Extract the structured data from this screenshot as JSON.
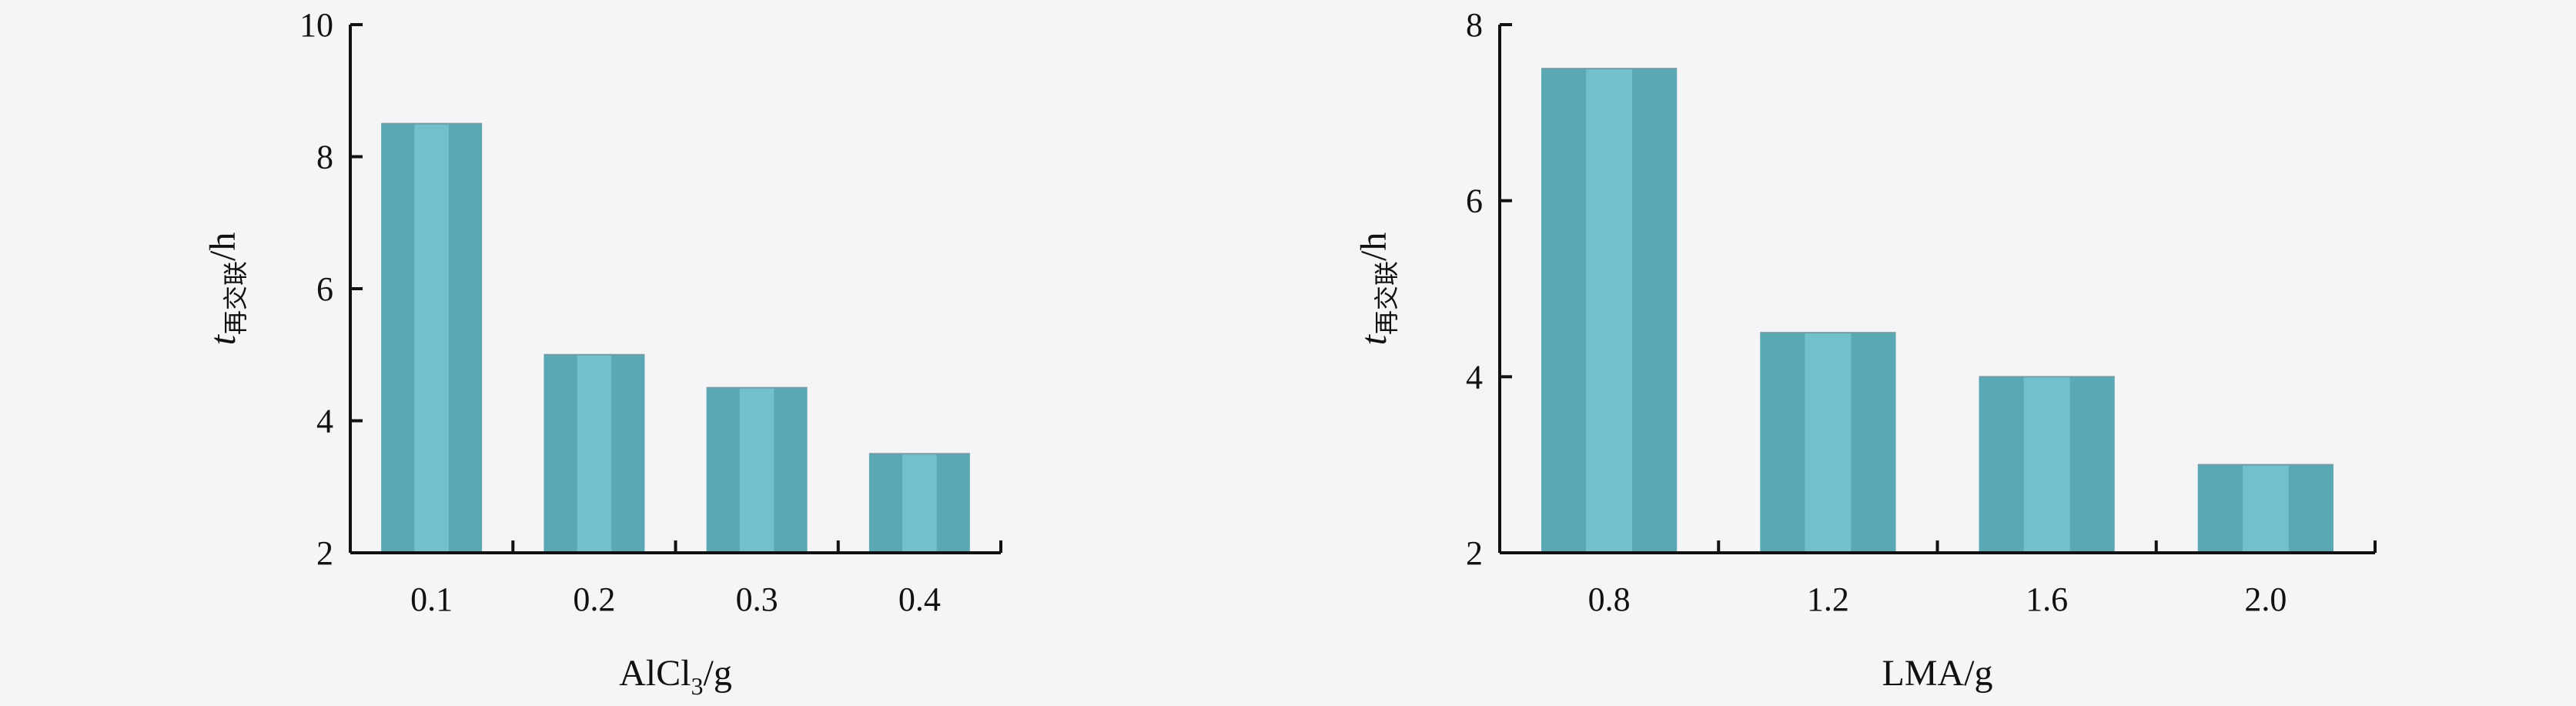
{
  "chart_data": [
    {
      "type": "bar",
      "categories": [
        "0.1",
        "0.2",
        "0.3",
        "0.4"
      ],
      "values": [
        8.5,
        5.0,
        4.5,
        3.5
      ],
      "xlabel": {
        "main": "AlCl",
        "sub": "3",
        "suffix": "/g"
      },
      "ylabel": {
        "main": "t",
        "sub": "再交联",
        "suffix": "/h"
      },
      "ylim": [
        2,
        10
      ],
      "yticks": [
        2,
        4,
        6,
        8,
        10
      ],
      "grid": false,
      "bar_color": "#5ba8b5",
      "bar_highlight_color": "#72c0cc"
    },
    {
      "type": "bar",
      "categories": [
        "0.8",
        "1.2",
        "1.6",
        "2.0"
      ],
      "values": [
        7.5,
        4.5,
        4.0,
        3.0
      ],
      "xlabel": {
        "main": "LMA",
        "sub": "",
        "suffix": "/g"
      },
      "ylabel": {
        "main": "t",
        "sub": "再交联",
        "suffix": "/h"
      },
      "ylim": [
        2,
        8
      ],
      "yticks": [
        2,
        4,
        6,
        8
      ],
      "grid": false,
      "bar_color": "#5ba8b5",
      "bar_highlight_color": "#72c0cc"
    }
  ]
}
